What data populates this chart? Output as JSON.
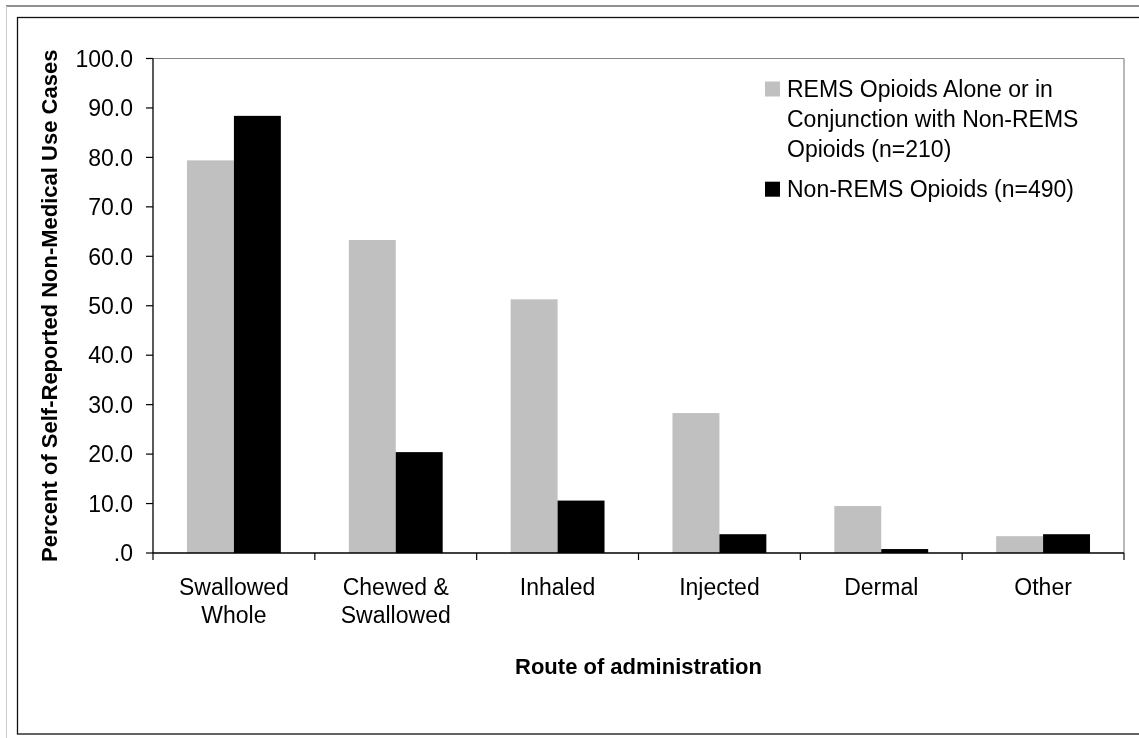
{
  "chart_data": {
    "type": "bar",
    "xlabel": "Route of administration",
    "ylabel": "Percent of Self-Reported Non-Medical Use Cases",
    "categories": [
      "Swallowed Whole",
      "Chewed & Swallowed",
      "Inhaled",
      "Injected",
      "Dermal",
      "Other"
    ],
    "series": [
      {
        "name": "REMS Opioids Alone or in Conjunction with Non-REMS Opioids (n=210)",
        "color": "#c0c0c0",
        "values": [
          79.4,
          63.3,
          51.3,
          28.3,
          9.5,
          3.4
        ]
      },
      {
        "name": "Non-REMS Opioids (n=490)",
        "color": "#000000",
        "values": [
          88.4,
          20.4,
          10.6,
          3.8,
          0.8,
          3.8
        ]
      }
    ],
    "ylim": [
      0,
      100
    ],
    "yticks": [
      {
        "value": 0,
        "label": ".0"
      },
      {
        "value": 10,
        "label": "10.0"
      },
      {
        "value": 20,
        "label": "20.0"
      },
      {
        "value": 30,
        "label": "30.0"
      },
      {
        "value": 40,
        "label": "40.0"
      },
      {
        "value": 50,
        "label": "50.0"
      },
      {
        "value": 60,
        "label": "60.0"
      },
      {
        "value": 70,
        "label": "70.0"
      },
      {
        "value": 80,
        "label": "80.0"
      },
      {
        "value": 90,
        "label": "90.0"
      },
      {
        "value": 100,
        "label": "100.0"
      }
    ],
    "legend": "top right"
  }
}
